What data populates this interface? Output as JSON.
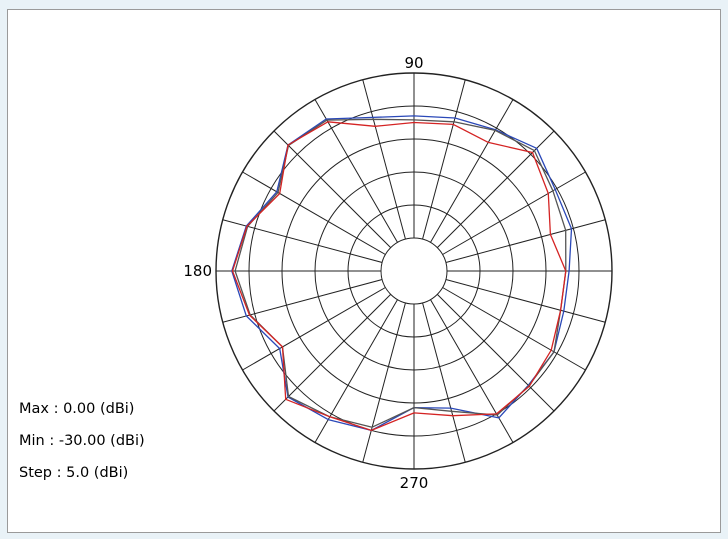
{
  "chart_data": {
    "type": "polar",
    "angle_labels": [
      {
        "deg": 90,
        "text": "90"
      },
      {
        "deg": 180,
        "text": "180"
      },
      {
        "deg": 270,
        "text": "270"
      }
    ],
    "radial_range_dbi": [
      -30,
      0
    ],
    "radial_step_dbi": 5,
    "angular_spoke_step_deg": 15,
    "info": {
      "max_text": "Max : 0.00 (dBi)",
      "min_text": "Min  : -30.00 (dBi)",
      "step_text": "Step : 5.0 (dBi)"
    },
    "series": [
      {
        "color": "#2a48b8",
        "angles_deg": [
          0,
          15,
          30,
          45,
          60,
          75,
          90,
          105,
          120,
          135,
          150,
          165,
          180,
          195,
          210,
          225,
          240,
          255,
          270,
          285,
          300,
          315,
          330,
          345
        ],
        "values_dbi": [
          -6.5,
          -5.3,
          -5.3,
          -3.7,
          -5.3,
          -6.0,
          -6.5,
          -5.9,
          -3.4,
          -3.0,
          -6.0,
          -3.7,
          -2.4,
          -3.7,
          -6.5,
          -3.0,
          -4.0,
          -5.0,
          -9.3,
          -8.5,
          -4.3,
          -5.5,
          -5.5,
          -6.5
        ]
      },
      {
        "color": "#555555",
        "angles_deg": [
          0,
          15,
          30,
          45,
          60,
          75,
          90,
          105,
          120,
          135,
          150,
          165,
          180,
          195,
          210,
          225,
          240,
          255,
          270,
          285,
          300,
          315,
          330,
          345
        ],
        "values_dbi": [
          -7.0,
          -6.2,
          -5.7,
          -4.2,
          -5.4,
          -6.6,
          -7.1,
          -6.2,
          -3.6,
          -3.1,
          -6.2,
          -3.9,
          -2.9,
          -4.3,
          -7.0,
          -3.1,
          -4.5,
          -5.5,
          -9.3,
          -8.0,
          -4.8,
          -5.4,
          -5.5,
          -7.0
        ]
      },
      {
        "color": "#d42323",
        "angles_deg": [
          0,
          15,
          30,
          45,
          60,
          75,
          90,
          105,
          120,
          135,
          150,
          165,
          180,
          195,
          210,
          225,
          240,
          255,
          270,
          285,
          300,
          315,
          330,
          345
        ],
        "values_dbi": [
          -7.0,
          -8.6,
          -6.5,
          -4.6,
          -7.5,
          -7.0,
          -7.5,
          -7.3,
          -3.9,
          -3.0,
          -6.5,
          -3.8,
          -2.5,
          -4.2,
          -7.0,
          -2.5,
          -4.5,
          -5.0,
          -8.5,
          -7.3,
          -5.0,
          -5.3,
          -6.0,
          -7.0
        ]
      }
    ]
  }
}
